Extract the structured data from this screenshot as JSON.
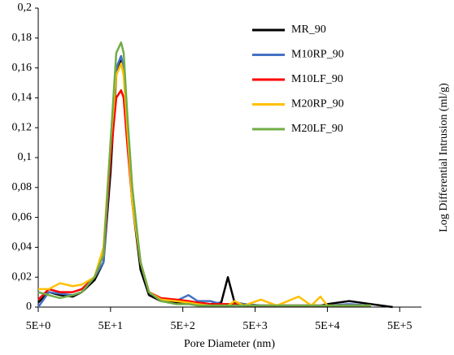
{
  "chart_data": {
    "type": "line",
    "x_label": "Pore Diameter  (nm)",
    "y_label": "Log Differential Intrusion  (ml/g)",
    "x_scale": "log",
    "legend": "upper right",
    "x": [
      5,
      7,
      10,
      15,
      20,
      30,
      40,
      50,
      60,
      70,
      76,
      85,
      100,
      130,
      170,
      250,
      400,
      600,
      800,
      1200,
      1700,
      2100,
      2600,
      3500,
      6000,
      10000,
      20000,
      30000,
      40000,
      50000,
      100000,
      200000,
      400000
    ],
    "series": [
      {
        "name": "MR_90",
        "color": "#000000",
        "values": [
          0.003,
          0.01,
          0.008,
          0.007,
          0.01,
          0.018,
          0.03,
          0.09,
          0.155,
          0.165,
          0.16,
          0.12,
          0.07,
          0.025,
          0.008,
          0.004,
          0.003,
          0.002,
          0.003,
          0.002,
          0.003,
          0.02,
          0.003,
          0.002,
          0.001,
          0.001,
          0.001,
          0.001,
          0.001,
          0.002,
          0.004,
          0.002,
          0
        ]
      },
      {
        "name": "M10RP_90",
        "color": "#4472c4",
        "values": [
          0,
          0.01,
          0.009,
          0.008,
          0.01,
          0.02,
          0.03,
          0.1,
          0.16,
          0.168,
          0.16,
          0.12,
          0.075,
          0.03,
          0.01,
          0.005,
          0.004,
          0.008,
          0.004,
          0.004,
          0.002,
          0.002,
          0.002,
          0.002,
          0.001,
          0.001,
          0.001,
          0.001,
          0.001,
          0.001,
          0.002,
          0.001,
          null
        ]
      },
      {
        "name": "M10LF_90",
        "color": "#ff0000",
        "values": [
          0.005,
          0.012,
          0.01,
          0.01,
          0.012,
          0.02,
          0.035,
          0.1,
          0.14,
          0.145,
          0.14,
          0.11,
          0.07,
          0.03,
          0.01,
          0.006,
          0.005,
          0.004,
          0.003,
          0.002,
          0.002,
          0.002,
          0.002,
          0.001,
          0.001,
          0.001,
          0.001,
          0.001,
          0.001,
          0.001,
          0.001,
          0.001,
          null
        ]
      },
      {
        "name": "M20RP_90",
        "color": "#ffc000",
        "values": [
          0.012,
          0.012,
          0.016,
          0.014,
          0.015,
          0.02,
          0.04,
          0.11,
          0.155,
          0.163,
          0.155,
          0.12,
          0.07,
          0.03,
          0.01,
          0.005,
          0.004,
          0.003,
          0.002,
          0.001,
          0.001,
          0.001,
          0.004,
          0.001,
          0.005,
          0.001,
          0.007,
          0.001,
          0.007,
          0.001,
          0.001,
          0.001,
          null
        ]
      },
      {
        "name": "M20LF_90",
        "color": "#70ad47",
        "values": [
          0.01,
          0.008,
          0.006,
          0.008,
          0.01,
          0.02,
          0.035,
          0.11,
          0.17,
          0.177,
          0.17,
          0.13,
          0.08,
          0.03,
          0.01,
          0.004,
          0.002,
          0.002,
          0.001,
          0.001,
          0.001,
          0.001,
          0.001,
          0.001,
          0.001,
          0.001,
          0.001,
          0.001,
          0.001,
          0.001,
          0.001,
          0.001,
          null
        ]
      }
    ],
    "xlim": [
      5,
      1000000
    ],
    "xticks": [
      {
        "value": 5,
        "label": "5E+0"
      },
      {
        "value": 50,
        "label": "5E+1"
      },
      {
        "value": 500,
        "label": "5E+2"
      },
      {
        "value": 5000,
        "label": "5E+3"
      },
      {
        "value": 50000,
        "label": "5E+4"
      },
      {
        "value": 500000,
        "label": "5E+5"
      }
    ],
    "ylim": [
      0,
      0.2
    ],
    "yticks": [
      0,
      {
        "value": 0.02,
        "label": "0,02"
      },
      {
        "value": 0.04,
        "label": "0,04"
      },
      {
        "value": 0.06,
        "label": "0,06"
      },
      {
        "value": 0.08,
        "label": "0,08"
      },
      {
        "value": 0.1,
        "label": "0,1"
      },
      {
        "value": 0.12,
        "label": "0,12"
      },
      {
        "value": 0.14,
        "label": "0,14"
      },
      {
        "value": 0.16,
        "label": "0,16"
      },
      {
        "value": 0.18,
        "label": "0,18"
      },
      {
        "value": 0.2,
        "label": "0,2"
      }
    ],
    "grid": false
  }
}
